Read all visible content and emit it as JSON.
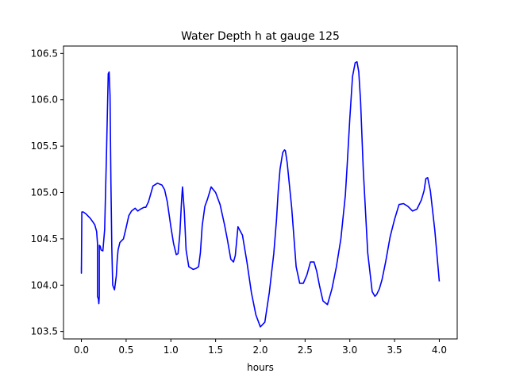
{
  "chart_data": {
    "type": "line",
    "title": "Water Depth h at gauge 125",
    "xlabel": "hours",
    "ylabel": "",
    "xlim": [
      -0.2,
      4.2
    ],
    "ylim": [
      103.42,
      106.58
    ],
    "xticks": [
      0.0,
      0.5,
      1.0,
      1.5,
      2.0,
      2.5,
      3.0,
      3.5,
      4.0
    ],
    "xtick_labels": [
      "0.0",
      "0.5",
      "1.0",
      "1.5",
      "2.0",
      "2.5",
      "3.0",
      "3.5",
      "4.0"
    ],
    "yticks": [
      103.5,
      104.0,
      104.5,
      105.0,
      105.5,
      106.0,
      106.5
    ],
    "ytick_labels": [
      "103.5",
      "104.0",
      "104.5",
      "105.0",
      "105.5",
      "106.0",
      "106.5"
    ],
    "grid": false,
    "legend": "none",
    "series": [
      {
        "color": "#0000ff",
        "x": [
          0.0,
          0.0,
          0.005,
          0.02,
          0.05,
          0.08,
          0.1,
          0.13,
          0.15,
          0.17,
          0.18,
          0.18,
          0.19,
          0.195,
          0.2,
          0.2,
          0.21,
          0.22,
          0.24,
          0.26,
          0.28,
          0.3,
          0.31,
          0.32,
          0.33,
          0.34,
          0.35,
          0.37,
          0.39,
          0.4,
          0.41,
          0.43,
          0.45,
          0.47,
          0.5,
          0.53,
          0.56,
          0.6,
          0.63,
          0.66,
          0.7,
          0.72,
          0.75,
          0.8,
          0.85,
          0.9,
          0.93,
          0.96,
          1.0,
          1.03,
          1.06,
          1.08,
          1.1,
          1.12,
          1.13,
          1.15,
          1.17,
          1.2,
          1.25,
          1.28,
          1.31,
          1.33,
          1.35,
          1.38,
          1.41,
          1.45,
          1.5,
          1.55,
          1.6,
          1.63,
          1.67,
          1.7,
          1.72,
          1.75,
          1.8,
          1.85,
          1.9,
          1.95,
          2.0,
          2.05,
          2.1,
          2.15,
          2.18,
          2.2,
          2.22,
          2.25,
          2.27,
          2.28,
          2.3,
          2.35,
          2.4,
          2.44,
          2.48,
          2.52,
          2.56,
          2.6,
          2.63,
          2.66,
          2.7,
          2.75,
          2.8,
          2.85,
          2.9,
          2.95,
          2.97,
          3.0,
          3.03,
          3.06,
          3.08,
          3.1,
          3.12,
          3.15,
          3.2,
          3.25,
          3.28,
          3.3,
          3.33,
          3.36,
          3.4,
          3.45,
          3.5,
          3.55,
          3.6,
          3.65,
          3.7,
          3.75,
          3.8,
          3.83,
          3.85,
          3.87,
          3.9,
          3.95,
          4.0
        ],
        "y": [
          104.2,
          104.13,
          104.79,
          104.79,
          104.77,
          104.74,
          104.72,
          104.68,
          104.65,
          104.58,
          104.45,
          103.88,
          103.85,
          103.8,
          103.88,
          104.43,
          104.42,
          104.38,
          104.37,
          104.6,
          105.4,
          106.28,
          106.3,
          106.05,
          105.1,
          104.4,
          104.0,
          103.95,
          104.1,
          104.27,
          104.38,
          104.46,
          104.48,
          104.5,
          104.62,
          104.75,
          104.8,
          104.83,
          104.8,
          104.82,
          104.84,
          104.84,
          104.9,
          105.07,
          105.1,
          105.08,
          105.03,
          104.9,
          104.63,
          104.45,
          104.33,
          104.34,
          104.55,
          104.92,
          105.06,
          104.8,
          104.38,
          104.2,
          104.17,
          104.18,
          104.2,
          104.35,
          104.64,
          104.85,
          104.93,
          105.06,
          105.0,
          104.87,
          104.65,
          104.5,
          104.28,
          104.25,
          104.32,
          104.63,
          104.54,
          104.25,
          103.92,
          103.68,
          103.55,
          103.6,
          103.92,
          104.34,
          104.7,
          105.02,
          105.25,
          105.43,
          105.46,
          105.45,
          105.32,
          104.84,
          104.2,
          104.02,
          104.02,
          104.11,
          104.25,
          104.25,
          104.15,
          104.0,
          103.83,
          103.79,
          103.96,
          104.2,
          104.5,
          104.97,
          105.29,
          105.8,
          106.25,
          106.4,
          106.41,
          106.3,
          105.99,
          105.25,
          104.35,
          103.93,
          103.88,
          103.9,
          103.96,
          104.06,
          104.25,
          104.52,
          104.71,
          104.87,
          104.88,
          104.85,
          104.8,
          104.82,
          104.92,
          105.02,
          105.15,
          105.16,
          105.02,
          104.59,
          104.04
        ]
      }
    ]
  }
}
